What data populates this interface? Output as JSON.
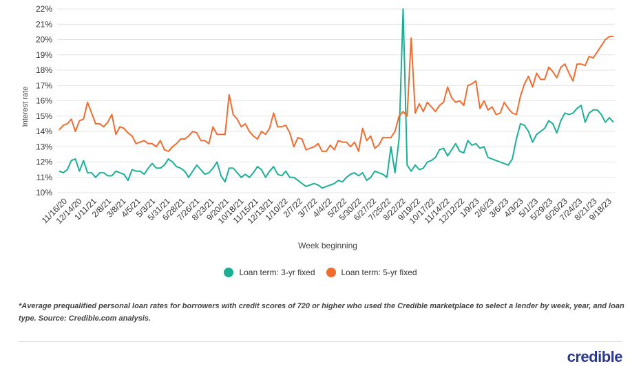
{
  "chart_data": {
    "type": "line",
    "ylabel": "Interest rate",
    "xlabel": "Week beginning",
    "ylim": [
      10,
      22
    ],
    "yticks": [
      "10%",
      "11%",
      "12%",
      "13%",
      "14%",
      "15%",
      "16%",
      "17%",
      "18%",
      "19%",
      "20%",
      "21%",
      "22%"
    ],
    "xticks": [
      "11/16/20",
      "12/14/20",
      "1/11/21",
      "2/8/21",
      "3/8/21",
      "4/5/21",
      "5/3/21",
      "5/31/21",
      "6/28/21",
      "7/26/21",
      "8/23/21",
      "9/20/21",
      "10/18/21",
      "11/15/21",
      "12/13/21",
      "1/10/22",
      "2/7/22",
      "3/7/22",
      "4/4/22",
      "5/2/22",
      "5/30/22",
      "6/27/22",
      "7/25/22",
      "8/22/22",
      "9/19/22",
      "10/17/22",
      "11/14/22",
      "12/12/22",
      "1/9/23",
      "2/6/23",
      "3/6/23",
      "4/3/23",
      "5/1/23",
      "5/29/23",
      "6/26/23",
      "7/24/23",
      "8/21/23",
      "9/18/23"
    ],
    "grid": true,
    "legend_position": "bottom-center",
    "series": [
      {
        "name": "Loan term: 3-yr fixed",
        "color": "#1aaf94",
        "values": [
          11.4,
          11.3,
          11.5,
          12.1,
          12.2,
          11.4,
          12.1,
          11.3,
          11.3,
          11.0,
          11.3,
          11.3,
          11.1,
          11.1,
          11.4,
          11.3,
          11.2,
          10.8,
          11.5,
          11.4,
          11.4,
          11.2,
          11.6,
          11.9,
          11.6,
          11.6,
          11.8,
          12.2,
          12.0,
          11.7,
          11.6,
          11.4,
          11.0,
          11.4,
          11.8,
          11.5,
          11.2,
          11.3,
          11.6,
          12.0,
          11.1,
          10.7,
          11.6,
          11.6,
          11.3,
          11.0,
          11.2,
          11.0,
          11.3,
          11.7,
          11.5,
          11.0,
          11.4,
          11.7,
          11.2,
          11.1,
          11.4,
          11.0,
          11.0,
          10.8,
          10.6,
          10.4,
          10.5,
          10.6,
          10.5,
          10.3,
          10.4,
          10.5,
          10.6,
          10.8,
          10.7,
          11.0,
          11.2,
          11.3,
          11.1,
          11.3,
          10.8,
          11.0,
          11.4,
          11.3,
          11.2,
          11.0,
          13.0,
          11.3,
          13.5,
          22.0,
          11.8,
          11.4,
          11.8,
          11.5,
          11.6,
          12.0,
          12.1,
          12.3,
          12.8,
          12.9,
          12.4,
          12.8,
          13.2,
          12.7,
          12.6,
          13.4,
          13.1,
          13.2,
          12.9,
          13.0,
          12.3,
          12.2,
          12.1,
          12.0,
          11.9,
          11.8,
          12.2,
          13.5,
          14.5,
          14.4,
          14.0,
          13.3,
          13.8,
          14.0,
          14.2,
          14.7,
          14.5,
          13.9,
          14.7,
          15.2,
          15.1,
          15.2,
          15.5,
          15.7,
          14.6,
          15.2,
          15.4,
          15.4,
          15.1,
          14.6,
          14.9,
          14.6
        ]
      },
      {
        "name": "Loan term: 5-yr fixed",
        "color": "#f36b2c",
        "values": [
          14.1,
          14.4,
          14.5,
          14.8,
          14.0,
          14.7,
          14.8,
          15.9,
          15.2,
          14.5,
          14.5,
          14.3,
          14.6,
          15.1,
          13.8,
          14.3,
          14.2,
          13.9,
          13.7,
          13.2,
          13.3,
          13.4,
          13.2,
          13.2,
          13.0,
          13.4,
          12.8,
          12.7,
          13.0,
          13.2,
          13.5,
          13.5,
          13.7,
          14.0,
          13.9,
          13.4,
          13.4,
          13.2,
          14.3,
          13.8,
          13.8,
          13.8,
          16.4,
          15.1,
          14.8,
          14.3,
          14.5,
          14.0,
          13.7,
          13.5,
          14.0,
          13.8,
          14.2,
          15.2,
          14.3,
          14.3,
          14.4,
          13.9,
          13.0,
          13.6,
          13.5,
          12.8,
          12.9,
          13.0,
          13.2,
          12.7,
          12.7,
          13.1,
          12.8,
          13.4,
          13.3,
          13.3,
          13.0,
          13.3,
          12.7,
          14.2,
          13.4,
          13.7,
          12.9,
          13.1,
          13.6,
          13.6,
          13.6,
          14.0,
          15.0,
          15.3,
          15.0,
          20.1,
          15.2,
          15.8,
          15.3,
          15.9,
          15.6,
          15.3,
          15.7,
          15.9,
          16.9,
          16.2,
          15.9,
          16.0,
          15.7,
          17.0,
          17.1,
          17.3,
          15.5,
          16.0,
          15.4,
          15.6,
          15.1,
          15.2,
          15.9,
          15.5,
          15.2,
          15.1,
          16.3,
          17.1,
          17.6,
          16.9,
          17.8,
          17.4,
          17.4,
          18.2,
          17.9,
          17.5,
          18.2,
          18.4,
          17.8,
          17.3,
          18.4,
          18.4,
          18.3,
          18.9,
          18.8,
          19.2,
          19.6,
          20.0,
          20.2,
          20.2
        ]
      }
    ]
  },
  "footnote": "*Average prequalified personal loan rates for borrowers with credit scores of 720 or higher who used the Credible marketplace to select a lender by week, year, and loan type. Source: Credible.com analysis.",
  "brand": "credible"
}
